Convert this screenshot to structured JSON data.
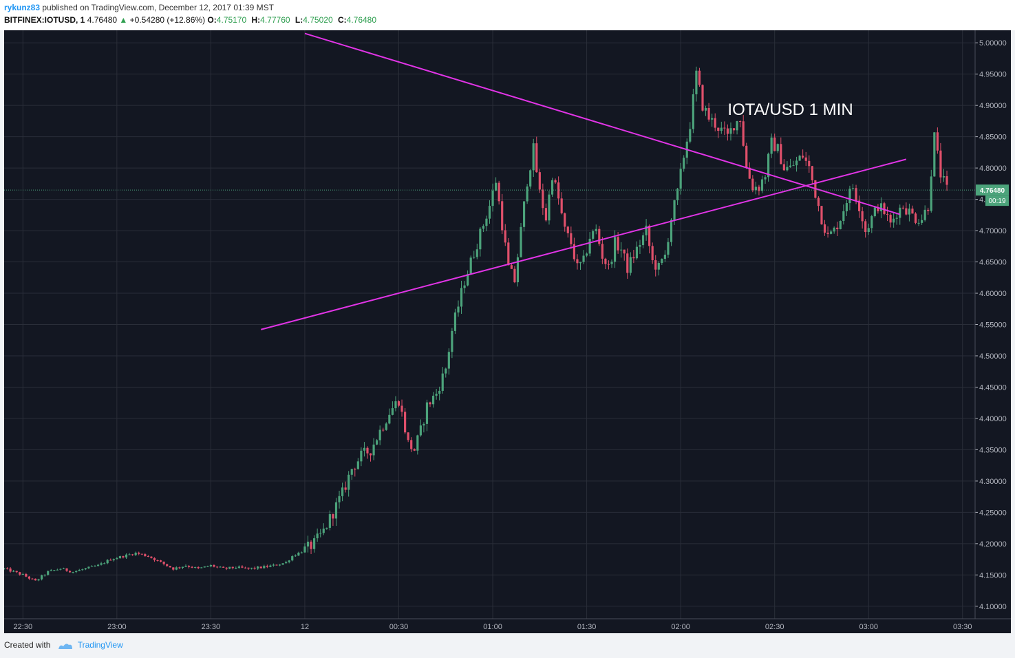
{
  "header": {
    "user": "rykunz83",
    "published": " published on TradingView.com, December 12, 2017 01:39 MST",
    "symbol": "BITFINEX:IOTUSD, 1",
    "last": "4.76480",
    "change": "+0.54280 (+12.86%)",
    "o_label": "O:",
    "o_value": "4.75170",
    "h_label": "H:",
    "h_value": "4.77760",
    "l_label": "L:",
    "l_value": "4.75020",
    "c_label": "C:",
    "c_value": "4.76480"
  },
  "footer": {
    "created_with": "Created with",
    "brand": "TradingView"
  },
  "colors": {
    "background": "#131722",
    "grid": "#2a2e39",
    "up": "#4ca37b",
    "down": "#e0506b",
    "trendline": "#e134e6",
    "price_tag": "#4ca37b",
    "axis_text": "#b2b5be"
  },
  "chart_data": {
    "type": "candlestick",
    "title": "BITFINEX:IOTUSD, 1",
    "annotation": "IOTA/USD 1 MIN",
    "x_ticks": [
      "22:30",
      "23:00",
      "23:30",
      "12",
      "00:30",
      "01:00",
      "01:30",
      "02:00",
      "02:30",
      "03:00",
      "03:30"
    ],
    "x_range_minutes": [
      -96,
      214
    ],
    "y_ticks": [
      "4.10000",
      "4.15000",
      "4.20000",
      "4.25000",
      "4.30000",
      "4.35000",
      "4.40000",
      "4.45000",
      "4.50000",
      "4.55000",
      "4.60000",
      "4.65000",
      "4.70000",
      "4.75000",
      "4.80000",
      "4.85000",
      "4.90000",
      "4.95000",
      "5.00000"
    ],
    "ylim": [
      4.08,
      5.02
    ],
    "last_price": "4.76480",
    "countdown": "00:19",
    "trendlines": [
      {
        "name": "upper",
        "x": [
          0,
          190
        ],
        "y": [
          5.015,
          4.726
        ]
      },
      {
        "name": "lower",
        "x": [
          -14,
          192
        ],
        "y": [
          4.542,
          4.814
        ]
      }
    ],
    "price_path": [
      [
        -96,
        4.16
      ],
      [
        -90,
        4.15
      ],
      [
        -86,
        4.14
      ],
      [
        -82,
        4.155
      ],
      [
        -78,
        4.16
      ],
      [
        -74,
        4.155
      ],
      [
        -70,
        4.16
      ],
      [
        -66,
        4.165
      ],
      [
        -62,
        4.175
      ],
      [
        -58,
        4.18
      ],
      [
        -54,
        4.185
      ],
      [
        -50,
        4.18
      ],
      [
        -46,
        4.17
      ],
      [
        -42,
        4.16
      ],
      [
        -38,
        4.165
      ],
      [
        -34,
        4.16
      ],
      [
        -30,
        4.165
      ],
      [
        -26,
        4.16
      ],
      [
        -22,
        4.162
      ],
      [
        -18,
        4.16
      ],
      [
        -14,
        4.162
      ],
      [
        -10,
        4.165
      ],
      [
        -6,
        4.17
      ],
      [
        -4,
        4.18
      ],
      [
        -2,
        4.185
      ],
      [
        0,
        4.19
      ],
      [
        3,
        4.2
      ],
      [
        6,
        4.22
      ],
      [
        9,
        4.25
      ],
      [
        12,
        4.28
      ],
      [
        15,
        4.32
      ],
      [
        18,
        4.34
      ],
      [
        21,
        4.35
      ],
      [
        24,
        4.38
      ],
      [
        27,
        4.41
      ],
      [
        30,
        4.43
      ],
      [
        33,
        4.36
      ],
      [
        35,
        4.35
      ],
      [
        37,
        4.38
      ],
      [
        39,
        4.42
      ],
      [
        42,
        4.44
      ],
      [
        45,
        4.48
      ],
      [
        47,
        4.54
      ],
      [
        49,
        4.58
      ],
      [
        51,
        4.62
      ],
      [
        53,
        4.65
      ],
      [
        55,
        4.68
      ],
      [
        57,
        4.71
      ],
      [
        59,
        4.74
      ],
      [
        61,
        4.78
      ],
      [
        63,
        4.71
      ],
      [
        65,
        4.64
      ],
      [
        67,
        4.62
      ],
      [
        69,
        4.7
      ],
      [
        71,
        4.78
      ],
      [
        73,
        4.83
      ],
      [
        75,
        4.76
      ],
      [
        77,
        4.72
      ],
      [
        79,
        4.79
      ],
      [
        81,
        4.75
      ],
      [
        83,
        4.7
      ],
      [
        85,
        4.68
      ],
      [
        87,
        4.64
      ],
      [
        89,
        4.65
      ],
      [
        91,
        4.69
      ],
      [
        93,
        4.7
      ],
      [
        95,
        4.66
      ],
      [
        97,
        4.64
      ],
      [
        99,
        4.68
      ],
      [
        101,
        4.67
      ],
      [
        103,
        4.64
      ],
      [
        105,
        4.66
      ],
      [
        107,
        4.68
      ],
      [
        109,
        4.7
      ],
      [
        111,
        4.65
      ],
      [
        113,
        4.64
      ],
      [
        115,
        4.66
      ],
      [
        117,
        4.72
      ],
      [
        119,
        4.76
      ],
      [
        121,
        4.82
      ],
      [
        123,
        4.87
      ],
      [
        125,
        4.95
      ],
      [
        127,
        4.9
      ],
      [
        129,
        4.88
      ],
      [
        131,
        4.87
      ],
      [
        133,
        4.86
      ],
      [
        135,
        4.85
      ],
      [
        137,
        4.87
      ],
      [
        139,
        4.88
      ],
      [
        141,
        4.8
      ],
      [
        143,
        4.77
      ],
      [
        145,
        4.77
      ],
      [
        147,
        4.79
      ],
      [
        149,
        4.84
      ],
      [
        151,
        4.83
      ],
      [
        153,
        4.8
      ],
      [
        155,
        4.8
      ],
      [
        157,
        4.81
      ],
      [
        159,
        4.82
      ],
      [
        161,
        4.8
      ],
      [
        163,
        4.76
      ],
      [
        165,
        4.72
      ],
      [
        167,
        4.69
      ],
      [
        169,
        4.7
      ],
      [
        171,
        4.72
      ],
      [
        173,
        4.75
      ],
      [
        175,
        4.77
      ],
      [
        177,
        4.74
      ],
      [
        179,
        4.7
      ],
      [
        181,
        4.72
      ],
      [
        183,
        4.74
      ],
      [
        185,
        4.73
      ],
      [
        187,
        4.71
      ],
      [
        189,
        4.73
      ],
      [
        191,
        4.74
      ],
      [
        193,
        4.73
      ],
      [
        195,
        4.72
      ],
      [
        197,
        4.72
      ],
      [
        199,
        4.74
      ],
      [
        201,
        4.85
      ],
      [
        203,
        4.79
      ],
      [
        205,
        4.765
      ]
    ]
  }
}
